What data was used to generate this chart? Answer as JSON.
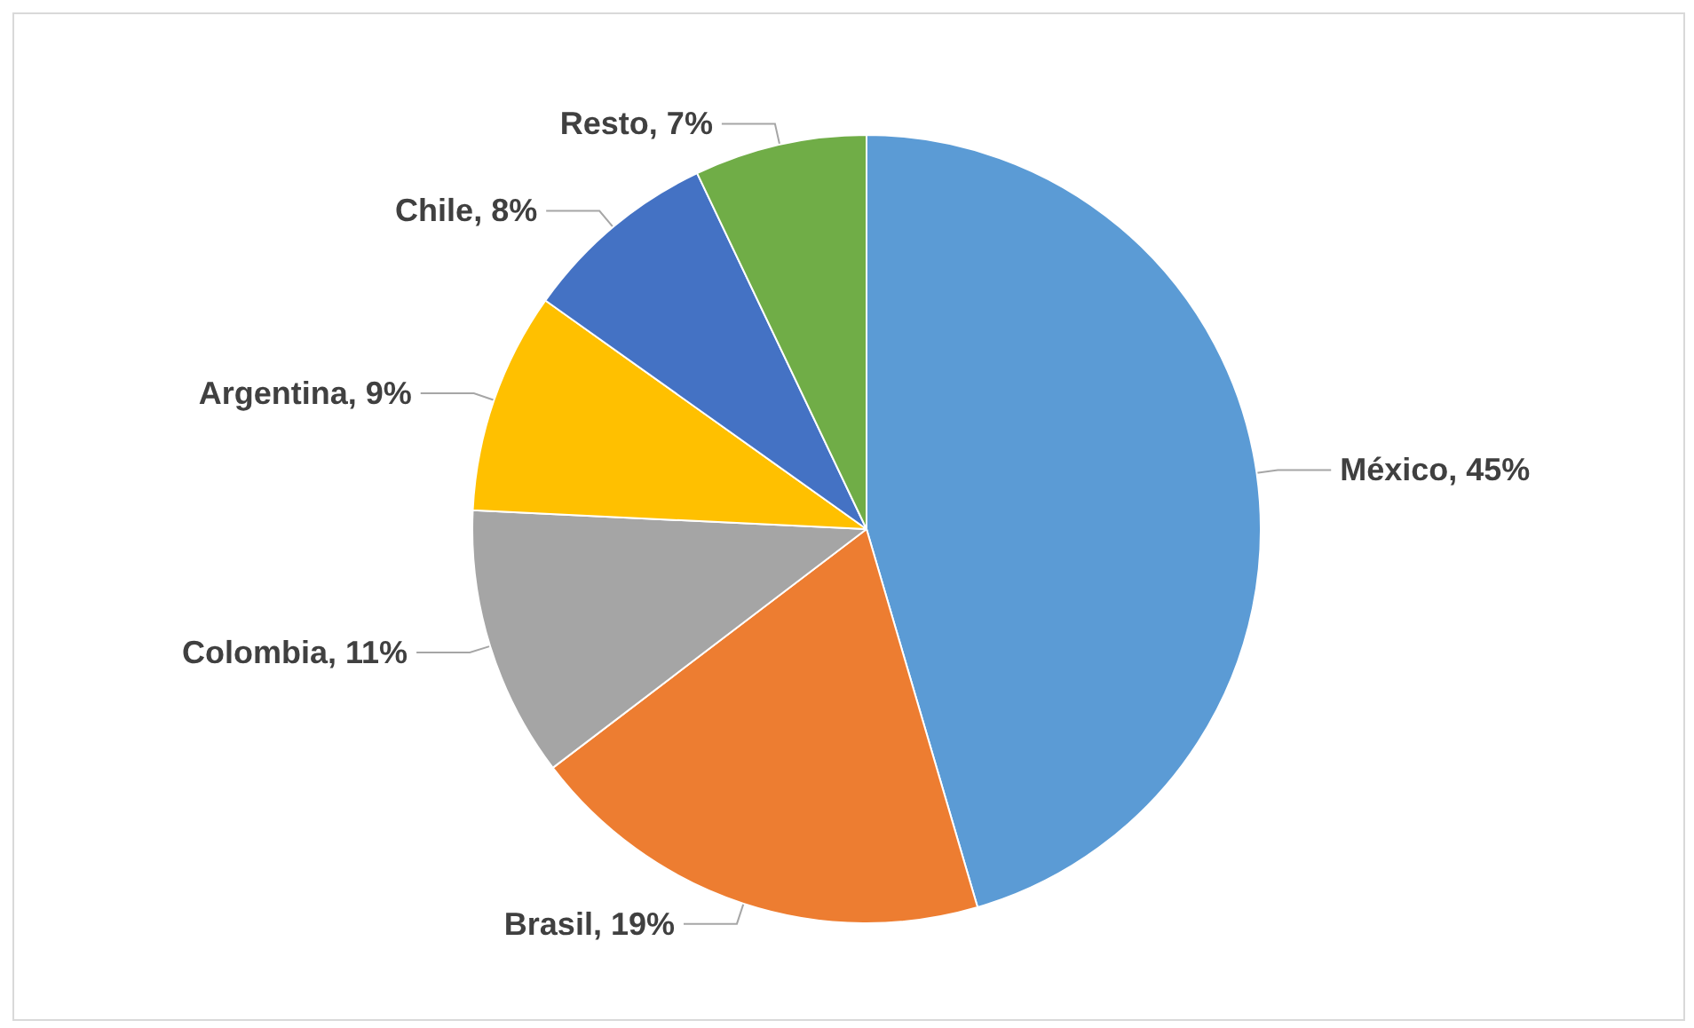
{
  "chart_data": {
    "type": "pie",
    "categories": [
      "México",
      "Brasil",
      "Colombia",
      "Argentina",
      "Chile",
      "Resto"
    ],
    "values": [
      45,
      19,
      11,
      9,
      8,
      7
    ],
    "value_labels": [
      "45%",
      "19%",
      "11%",
      "9%",
      "8%",
      "7%"
    ],
    "colors": [
      "#5b9bd5",
      "#ed7d31",
      "#a5a5a5",
      "#ffc000",
      "#4472c4",
      "#70ad47"
    ],
    "legend": false
  }
}
